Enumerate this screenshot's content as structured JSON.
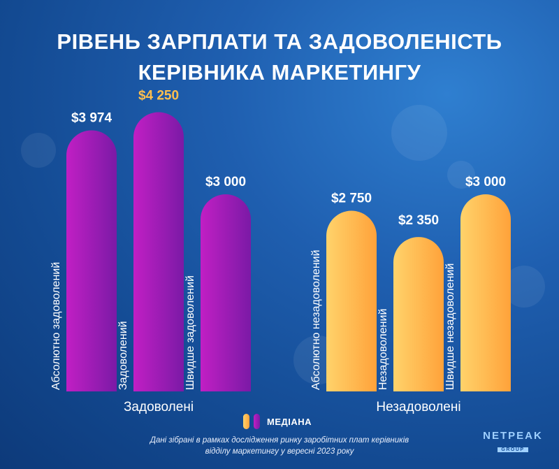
{
  "title_lines": [
    "РІВЕНЬ ЗАРПЛАТИ ТА ЗАДОВОЛЕНІСТЬ",
    "КЕРІВНИКА МАРКЕТИНГУ"
  ],
  "legend_label": "МЕДІАНА",
  "footnote_lines": [
    "Дані зібрані в рамках дослідження ринку заробітних плат керівників",
    "відділу маркетингу у вересні 2023 року"
  ],
  "logo": {
    "main": "NETPEAK",
    "sub": "GROUP"
  },
  "colors": {
    "purple_light": "#c11fc4",
    "purple_dark": "#7b1aa6",
    "orange_light": "#ffd36b",
    "orange_dark": "#ffa23a",
    "highlight_label": "#ffbf4d"
  },
  "chart_data": {
    "type": "bar",
    "ylim": [
      0,
      5000
    ],
    "grid": false,
    "groups": [
      {
        "name": "Задоволені",
        "color": "purple",
        "bars": [
          {
            "category": "Абсолютно задоволений",
            "value": 3974,
            "label": "$3 974"
          },
          {
            "category": "Задоволений",
            "value": 4250,
            "label": "$4 250",
            "highlight": true
          },
          {
            "category": "Швидше задоволений",
            "value": 3000,
            "label": "$3 000"
          }
        ]
      },
      {
        "name": "Незадоволені",
        "color": "orange",
        "bars": [
          {
            "category": "Абсолютно незадоволений",
            "value": 2750,
            "label": "$2 750"
          },
          {
            "category": "Незадоволений",
            "value": 2350,
            "label": "$2 350"
          },
          {
            "category": "Швидше незадоволений",
            "value": 3000,
            "label": "$3 000"
          }
        ]
      }
    ]
  }
}
